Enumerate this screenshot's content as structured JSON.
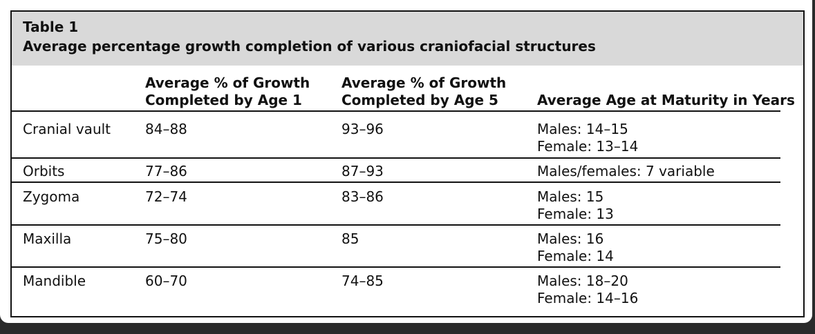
{
  "header": {
    "label": "Table 1",
    "title": "Average percentage growth completion of various craniofacial structures"
  },
  "table": {
    "columns": [
      [
        "Average % of Growth",
        "Completed by Age 1"
      ],
      [
        "Average % of Growth",
        "Completed by Age 5"
      ],
      [
        "Average Age at Maturity in Years"
      ]
    ],
    "rows": [
      [
        "Cranial vault",
        "84–88",
        "93–96",
        [
          "Males: 14–15",
          "Female: 13–14"
        ]
      ],
      [
        "Orbits",
        "77–86",
        "87–93",
        [
          "Males/females: 7 variable"
        ]
      ],
      [
        "Zygoma",
        "72–74",
        "83–86",
        [
          "Males: 15",
          "Female: 13"
        ]
      ],
      [
        "Maxilla",
        "75–80",
        "85",
        [
          "Males: 16",
          "Female: 14"
        ]
      ],
      [
        "Mandible",
        "60–70",
        "74–85",
        [
          "Males: 18–20",
          "Female: 14–16"
        ]
      ]
    ]
  }
}
